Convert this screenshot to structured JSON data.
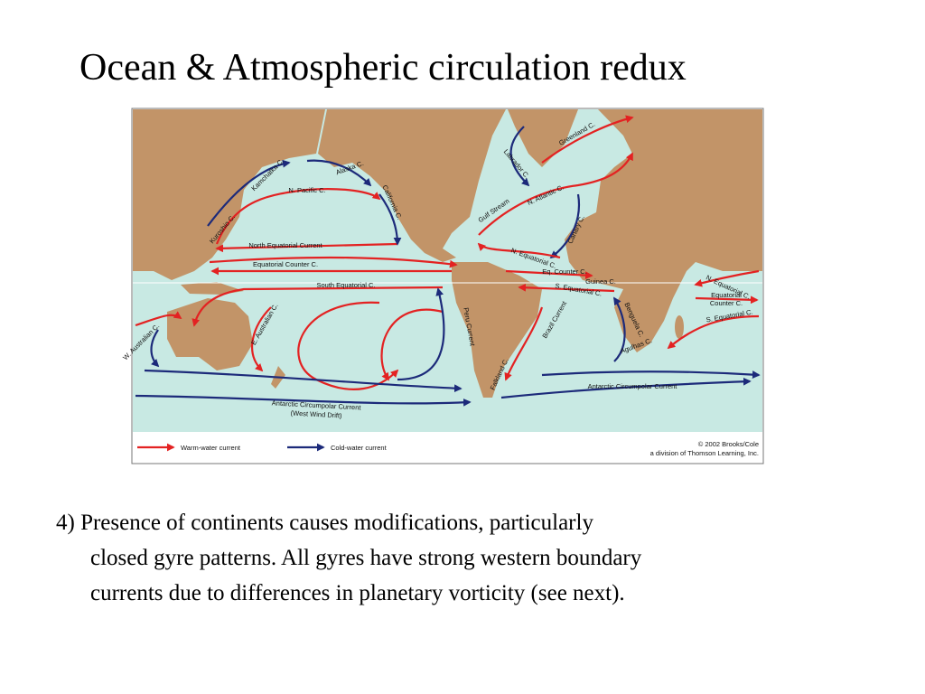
{
  "header": {
    "title": "Ocean & Atmospheric circulation redux"
  },
  "map": {
    "labels": [
      "Greenland C.",
      "Labrador C.",
      "Kamchatka C.",
      "Alaska C.",
      "N. Pacific C.",
      "California C.",
      "Kuroshio C.",
      "Gulf Stream",
      "N. Atlantic C.",
      "Canary C.",
      "North Equatorial Current",
      "Equatorial Counter C.",
      "N. Equatorial C.",
      "Eq. Counter C.",
      "Guinea C.",
      "S. Equatorial C.",
      "South Equatorial C.",
      "Peru Current",
      "E. Australian C.",
      "W. Australian C.",
      "Brazil Current",
      "Benguela C.",
      "Agulhas C.",
      "N. Equatorial C.",
      "Equatorial",
      "Counter C.",
      "S. Equatorial C.",
      "Falkland C.",
      "Antarctic Circumpolar Current",
      "Antarctic Circumpolar Current",
      "(West Wind Drift)"
    ],
    "legend": {
      "warm": "Warm-water current",
      "cold": "Cold-water current"
    },
    "credit": [
      "© 2002 Brooks/Cole",
      "a division of Thomson Learning, Inc."
    ]
  },
  "body": {
    "lines": [
      "4) Presence of continents causes modifications, particularly",
      "closed gyre patterns. All gyres have strong western boundary",
      "currents due to differences in planetary vorticity (see next)."
    ]
  }
}
